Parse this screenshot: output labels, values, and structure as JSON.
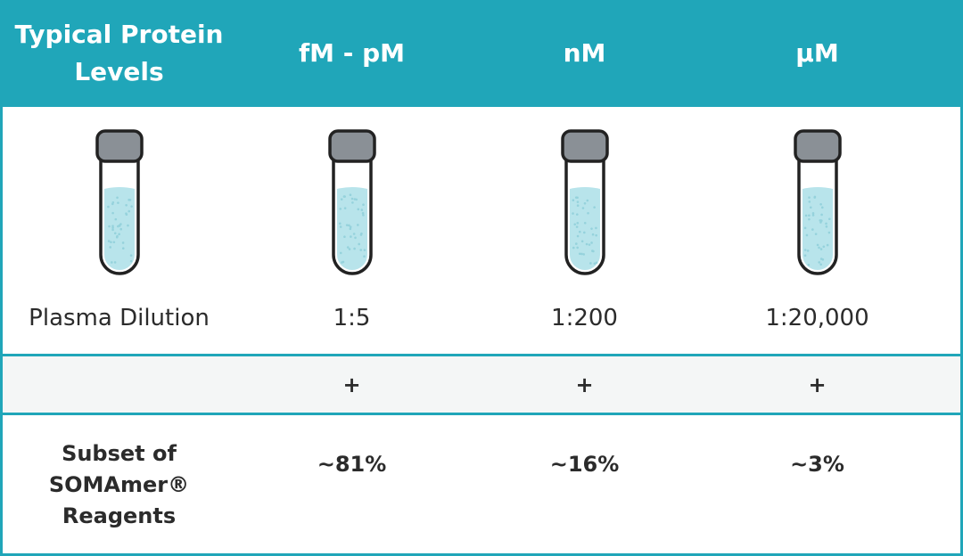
{
  "table": {
    "header": [
      "Typical Protein Levels",
      "fM - pM",
      "nM",
      "µM"
    ],
    "dilution": [
      "Plasma Dilution",
      "1:5",
      "1:200",
      "1:20,000"
    ],
    "plus": [
      "+",
      "+",
      "+"
    ],
    "subset": [
      "Subset of SOMAmer® Reagents",
      "~81%",
      "~16%",
      "~3%"
    ]
  }
}
